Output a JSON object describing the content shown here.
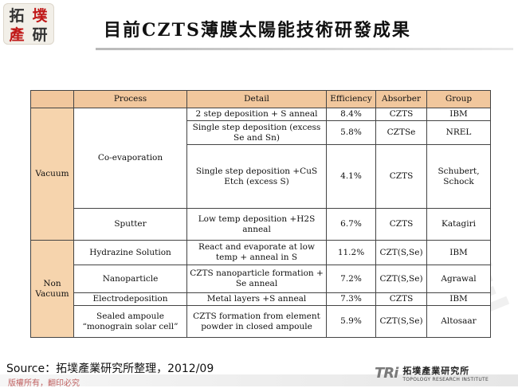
{
  "header": {
    "logo_chars": [
      "拓",
      "墣",
      "產",
      "研"
    ],
    "title": "目前CZTS薄膜太陽能技術研發成果"
  },
  "table": {
    "columns": [
      "Process",
      "Detail",
      "Efficiency",
      "Absorber",
      "Group"
    ],
    "groups": {
      "vacuum": "Vacuum",
      "non_vacuum": "Non Vacuum"
    },
    "processes": {
      "co_evaporation": "Co-evaporation",
      "sputter": "Sputter",
      "hydrazine": "Hydrazine Solution",
      "nanoparticle": "Nanoparticle",
      "electrodeposition": "Electrodeposition",
      "sealed": "Sealed ampoule “monograin solar cell”"
    },
    "rows": [
      {
        "detail": "2 step deposition + S anneal",
        "efficiency": "8.4%",
        "absorber": "CZTS",
        "group": "IBM"
      },
      {
        "detail": "Single step deposition (excess Se and Sn)",
        "efficiency": "5.8%",
        "absorber": "CZTSe",
        "group": "NREL"
      },
      {
        "detail": "Single step deposition +CuS Etch (excess S)",
        "efficiency": "4.1%",
        "absorber": "CZTS",
        "group": "Schubert, Schock"
      },
      {
        "detail": "Low temp deposition +H2S anneal",
        "efficiency": "6.7%",
        "absorber": "CZTS",
        "group": "Katagiri"
      },
      {
        "detail": "React and evaporate at low temp + anneal in S",
        "efficiency": "11.2%",
        "absorber": "CZT(S,Se)",
        "group": "IBM"
      },
      {
        "detail": "CZTS nanoparticle formation + Se anneal",
        "efficiency": "7.2%",
        "absorber": "CZT(S,Se)",
        "group": "Agrawal"
      },
      {
        "detail": "Metal layers +S anneal",
        "efficiency": "7.3%",
        "absorber": "CZTS",
        "group": "IBM"
      },
      {
        "detail": "CZTS formation from element powder in closed ampoule",
        "efficiency": "5.9%",
        "absorber": "CZT(S,Se)",
        "group": "Altosaar"
      }
    ]
  },
  "footer": {
    "source": "Source：拓墣產業研究所整理，2012/09",
    "copyright": "版權所有，翻印必究",
    "tri_mark": "TRi",
    "tri_cn": "拓墣產業研究所",
    "tri_en": "TOPOLOGY RESEARCH INSTITUTE"
  }
}
